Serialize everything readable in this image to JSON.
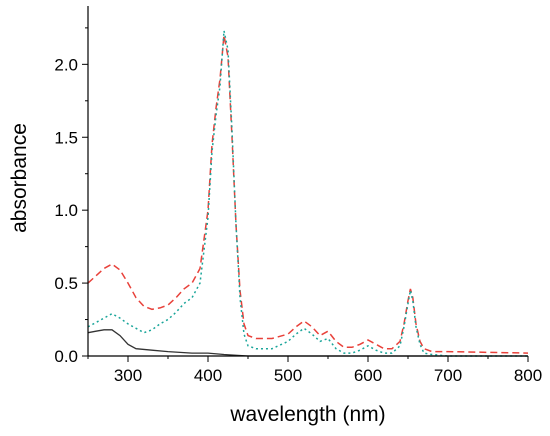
{
  "chart_data": {
    "type": "line",
    "title": "",
    "xlabel": "wavelength (nm)",
    "ylabel": "absorbance",
    "xlim": [
      250,
      800
    ],
    "ylim": [
      0,
      2.4
    ],
    "xticks": [
      300,
      400,
      500,
      600,
      700,
      800
    ],
    "yticks": [
      0.0,
      0.5,
      1.0,
      1.5,
      2.0
    ],
    "xtick_labels": [
      "300",
      "400",
      "500",
      "600",
      "700",
      "800"
    ],
    "ytick_labels": [
      "0.0",
      "0.5",
      "1.0",
      "1.5",
      "2.0"
    ],
    "grid": false,
    "legend": "none",
    "series": [
      {
        "color": "#333333",
        "dash": "solid",
        "points": [
          [
            250,
            0.16
          ],
          [
            260,
            0.17
          ],
          [
            270,
            0.18
          ],
          [
            280,
            0.18
          ],
          [
            290,
            0.14
          ],
          [
            300,
            0.08
          ],
          [
            310,
            0.05
          ],
          [
            330,
            0.04
          ],
          [
            350,
            0.03
          ],
          [
            380,
            0.02
          ],
          [
            400,
            0.02
          ],
          [
            420,
            0.01
          ],
          [
            450,
            0.0
          ],
          [
            500,
            0.0
          ],
          [
            600,
            0.0
          ],
          [
            700,
            0.0
          ],
          [
            800,
            0.0
          ]
        ]
      },
      {
        "color": "#e8413a",
        "dash": "dashed",
        "points": [
          [
            250,
            0.5
          ],
          [
            260,
            0.55
          ],
          [
            270,
            0.6
          ],
          [
            280,
            0.63
          ],
          [
            290,
            0.59
          ],
          [
            300,
            0.5
          ],
          [
            310,
            0.4
          ],
          [
            320,
            0.34
          ],
          [
            330,
            0.32
          ],
          [
            340,
            0.33
          ],
          [
            350,
            0.35
          ],
          [
            360,
            0.4
          ],
          [
            370,
            0.46
          ],
          [
            380,
            0.5
          ],
          [
            390,
            0.6
          ],
          [
            400,
            1.0
          ],
          [
            405,
            1.45
          ],
          [
            410,
            1.7
          ],
          [
            415,
            1.9
          ],
          [
            420,
            2.2
          ],
          [
            425,
            2.05
          ],
          [
            430,
            1.5
          ],
          [
            435,
            0.9
          ],
          [
            440,
            0.45
          ],
          [
            445,
            0.22
          ],
          [
            450,
            0.14
          ],
          [
            460,
            0.12
          ],
          [
            480,
            0.12
          ],
          [
            500,
            0.15
          ],
          [
            510,
            0.2
          ],
          [
            520,
            0.24
          ],
          [
            530,
            0.2
          ],
          [
            540,
            0.14
          ],
          [
            550,
            0.17
          ],
          [
            560,
            0.1
          ],
          [
            570,
            0.06
          ],
          [
            580,
            0.06
          ],
          [
            590,
            0.08
          ],
          [
            600,
            0.11
          ],
          [
            610,
            0.08
          ],
          [
            620,
            0.05
          ],
          [
            630,
            0.05
          ],
          [
            640,
            0.1
          ],
          [
            645,
            0.22
          ],
          [
            650,
            0.38
          ],
          [
            653,
            0.46
          ],
          [
            656,
            0.4
          ],
          [
            660,
            0.22
          ],
          [
            665,
            0.1
          ],
          [
            670,
            0.05
          ],
          [
            680,
            0.03
          ],
          [
            700,
            0.03
          ],
          [
            800,
            0.02
          ]
        ]
      },
      {
        "color": "#1aa59a",
        "dash": "dotted",
        "points": [
          [
            250,
            0.2
          ],
          [
            260,
            0.23
          ],
          [
            270,
            0.26
          ],
          [
            280,
            0.29
          ],
          [
            290,
            0.26
          ],
          [
            300,
            0.22
          ],
          [
            310,
            0.19
          ],
          [
            320,
            0.16
          ],
          [
            330,
            0.18
          ],
          [
            340,
            0.22
          ],
          [
            350,
            0.25
          ],
          [
            360,
            0.3
          ],
          [
            370,
            0.36
          ],
          [
            380,
            0.4
          ],
          [
            390,
            0.5
          ],
          [
            400,
            0.95
          ],
          [
            405,
            1.4
          ],
          [
            410,
            1.65
          ],
          [
            415,
            1.85
          ],
          [
            420,
            2.23
          ],
          [
            425,
            2.1
          ],
          [
            430,
            1.55
          ],
          [
            435,
            0.9
          ],
          [
            440,
            0.4
          ],
          [
            445,
            0.15
          ],
          [
            450,
            0.07
          ],
          [
            460,
            0.05
          ],
          [
            480,
            0.05
          ],
          [
            500,
            0.1
          ],
          [
            510,
            0.15
          ],
          [
            520,
            0.19
          ],
          [
            530,
            0.15
          ],
          [
            540,
            0.1
          ],
          [
            550,
            0.12
          ],
          [
            560,
            0.05
          ],
          [
            570,
            0.02
          ],
          [
            580,
            0.02
          ],
          [
            590,
            0.04
          ],
          [
            600,
            0.07
          ],
          [
            610,
            0.04
          ],
          [
            620,
            0.02
          ],
          [
            630,
            0.02
          ],
          [
            640,
            0.07
          ],
          [
            645,
            0.2
          ],
          [
            650,
            0.36
          ],
          [
            653,
            0.45
          ],
          [
            656,
            0.38
          ],
          [
            660,
            0.2
          ],
          [
            665,
            0.08
          ],
          [
            670,
            0.02
          ],
          [
            680,
            0.01
          ],
          [
            700,
            0.0
          ],
          [
            800,
            0.0
          ]
        ]
      }
    ]
  }
}
